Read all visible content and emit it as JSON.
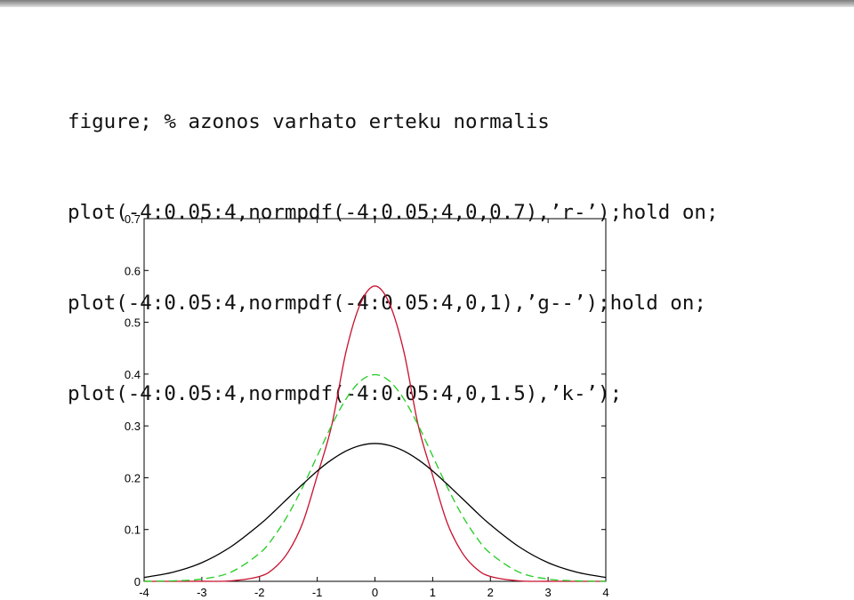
{
  "code_lines": [
    "figure; % azonos varhato erteku normalis",
    "plot(-4:0.05:4,normpdf(-4:0.05:4,0,0.7),’r-’);hold on;",
    "plot(-4:0.05:4,normpdf(-4:0.05:4,0,1),’g--’);hold on;",
    "plot(-4:0.05:4,normpdf(-4:0.05:4,0,1.5),’k-’);"
  ],
  "chart_data": {
    "type": "line",
    "xlim": [
      -4,
      4
    ],
    "ylim": [
      0,
      0.7
    ],
    "x_ticks": [
      -4,
      -3,
      -2,
      -1,
      0,
      1,
      2,
      3,
      4
    ],
    "y_ticks": [
      0,
      0.1,
      0.2,
      0.3,
      0.4,
      0.5,
      0.6,
      0.7
    ],
    "x_tick_labels": [
      "-4",
      "-3",
      "-2",
      "-1",
      "0",
      "1",
      "2",
      "3",
      "4"
    ],
    "y_tick_labels": [
      "0",
      "0.1",
      "0.2",
      "0.3",
      "0.4",
      "0.5",
      "0.6",
      "0.7"
    ],
    "grid": false,
    "legend": "none",
    "series": [
      {
        "color": "#c8102e",
        "style": "solid",
        "x": [
          -4,
          -3.5,
          -3,
          -2.5,
          -2,
          -1.75,
          -1.5,
          -1.25,
          -1,
          -0.75,
          -0.5,
          -0.25,
          0,
          0.25,
          0.5,
          0.75,
          1,
          1.25,
          1.5,
          1.75,
          2,
          2.5,
          3,
          3.5,
          4
        ],
        "y": [
          0.0,
          0.0,
          0.0001,
          0.0009,
          0.0095,
          0.025,
          0.0572,
          0.1135,
          0.2041,
          0.3007,
          0.4438,
          0.5364,
          0.5699,
          0.5364,
          0.4438,
          0.3007,
          0.2041,
          0.1135,
          0.0572,
          0.025,
          0.0095,
          0.0009,
          0.0001,
          0.0,
          0.0
        ]
      },
      {
        "color": "#22cc22",
        "style": "dashed",
        "x": [
          -4,
          -3.5,
          -3,
          -2.5,
          -2,
          -1.75,
          -1.5,
          -1.25,
          -1,
          -0.75,
          -0.5,
          -0.25,
          0,
          0.25,
          0.5,
          0.75,
          1,
          1.25,
          1.5,
          1.75,
          2,
          2.5,
          3,
          3.5,
          4
        ],
        "y": [
          0.0001,
          0.0009,
          0.0044,
          0.0175,
          0.054,
          0.0863,
          0.1295,
          0.1826,
          0.242,
          0.3011,
          0.3521,
          0.3867,
          0.3989,
          0.3867,
          0.3521,
          0.3011,
          0.242,
          0.1826,
          0.1295,
          0.0863,
          0.054,
          0.0175,
          0.0044,
          0.0009,
          0.0001
        ]
      },
      {
        "color": "#000000",
        "style": "solid",
        "x": [
          -4,
          -3.5,
          -3,
          -2.5,
          -2,
          -1.75,
          -1.5,
          -1.25,
          -1,
          -0.75,
          -0.5,
          -0.25,
          0,
          0.25,
          0.5,
          0.75,
          1,
          1.25,
          1.5,
          1.75,
          2,
          2.5,
          3,
          3.5,
          4
        ],
        "y": [
          0.0076,
          0.0176,
          0.036,
          0.0665,
          0.1093,
          0.1345,
          0.1613,
          0.1876,
          0.213,
          0.2347,
          0.2516,
          0.2623,
          0.266,
          0.2623,
          0.2516,
          0.2347,
          0.213,
          0.1876,
          0.1613,
          0.1345,
          0.1093,
          0.0665,
          0.036,
          0.0176,
          0.0076
        ]
      }
    ]
  }
}
